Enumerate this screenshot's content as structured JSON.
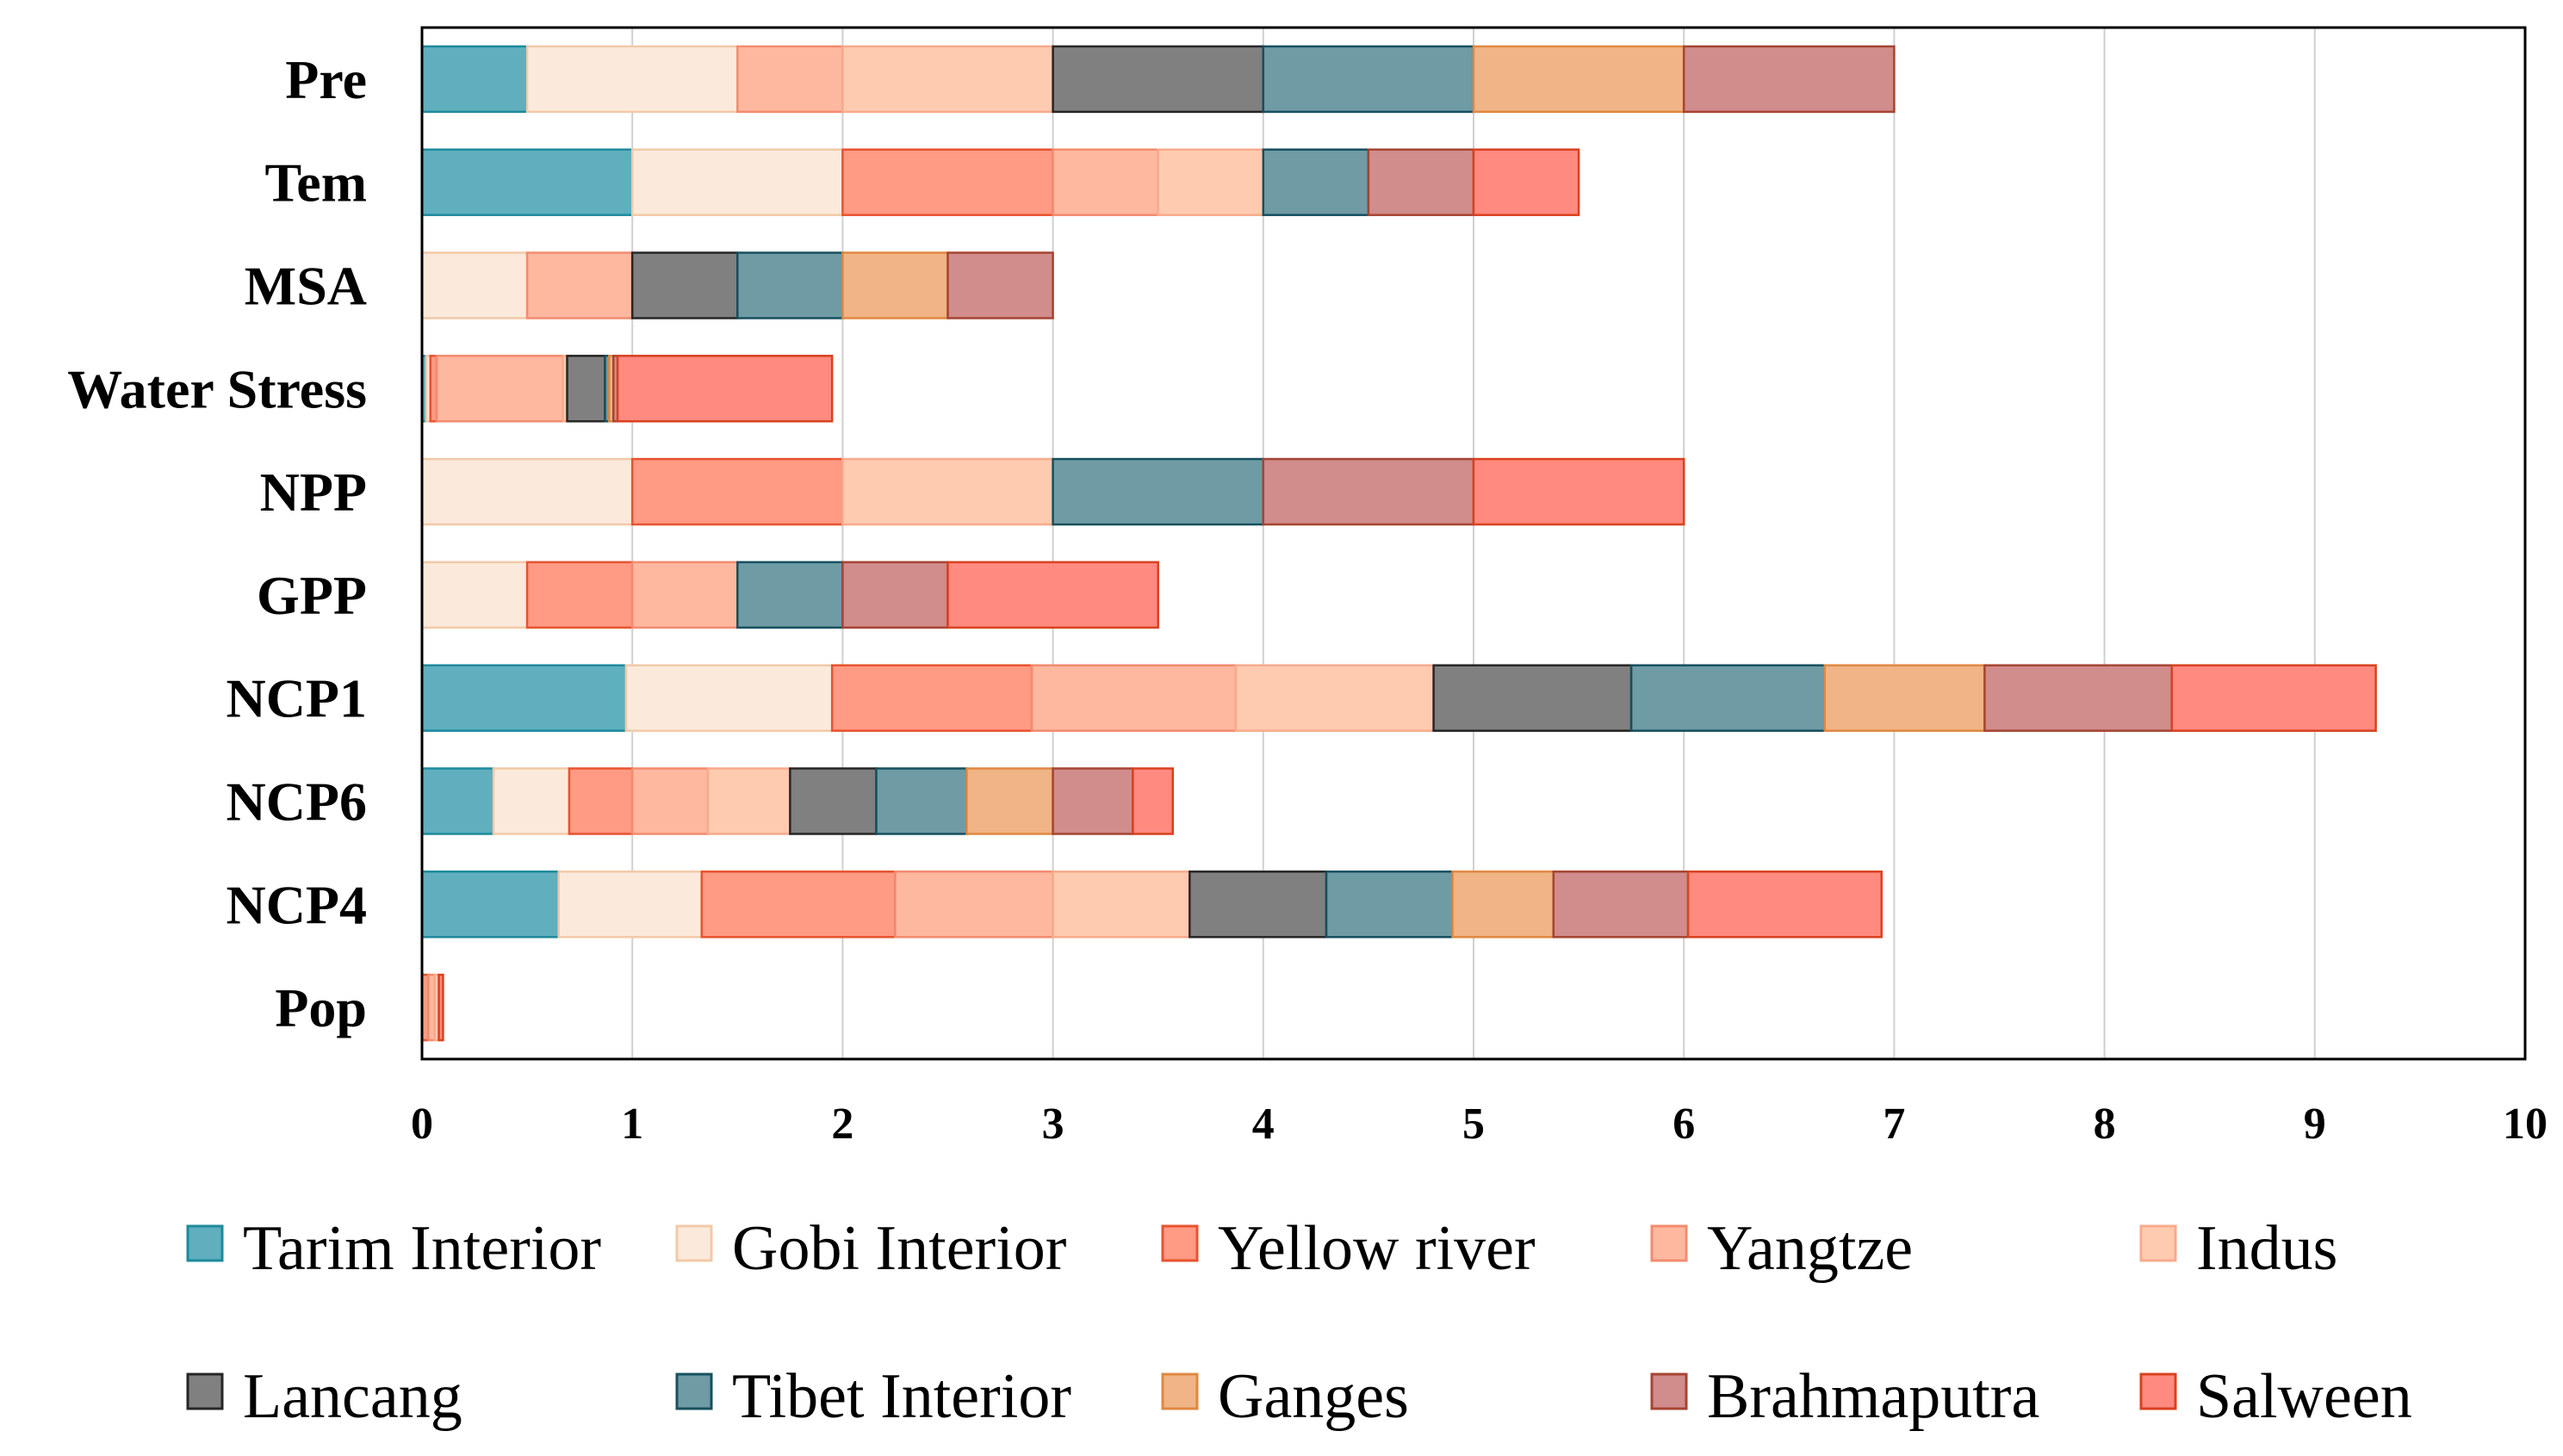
{
  "chart_data": {
    "type": "bar",
    "orientation": "horizontal",
    "stacked": true,
    "title": "",
    "xlabel": "",
    "ylabel": "",
    "xlim": [
      0,
      10
    ],
    "x_ticks": [
      "0",
      "1",
      "2",
      "3",
      "4",
      "5",
      "6",
      "7",
      "8",
      "9",
      "10"
    ],
    "grid": "vertical",
    "legend_position": "bottom",
    "categories": [
      "Pre",
      "Tem",
      "MSA",
      "Water Stress",
      "NPP",
      "GPP",
      "NCP1",
      "NCP6",
      "NCP4",
      "Pop"
    ],
    "series": [
      {
        "name": "Tarim Interior",
        "color": "#5FAFBF",
        "border": "#1E8A9C",
        "values": [
          0.5,
          1.0,
          0,
          0.02,
          0,
          0,
          0.97,
          0.34,
          0.65,
          0
        ]
      },
      {
        "name": "Gobi Interior",
        "color": "#FBEADB",
        "border": "#F2C9A8",
        "values": [
          1.0,
          1.0,
          0.5,
          0.02,
          1.0,
          0.5,
          0.98,
          0.36,
          0.68,
          0
        ]
      },
      {
        "name": "Yellow river",
        "color": "#FF9A84",
        "border": "#E8532F",
        "values": [
          0,
          1.0,
          0,
          0.03,
          1.0,
          0.5,
          0.95,
          0.3,
          0.92,
          0.03
        ]
      },
      {
        "name": "Yangtze",
        "color": "#FFB8A0",
        "border": "#F28B6E",
        "values": [
          0.5,
          0.5,
          0.5,
          0.6,
          0,
          0.5,
          0.97,
          0.36,
          0.75,
          0.03
        ]
      },
      {
        "name": "Indus",
        "color": "#FFCBB0",
        "border": "#F7AB8D",
        "values": [
          1.0,
          0.5,
          0,
          0.02,
          1.0,
          0,
          0.94,
          0.39,
          0.65,
          0.02
        ]
      },
      {
        "name": "Lancang",
        "color": "#808080",
        "border": "#262626",
        "values": [
          1.0,
          0,
          0.5,
          0.18,
          0,
          0,
          0.94,
          0.41,
          0.65,
          0
        ]
      },
      {
        "name": "Tibet Interior",
        "color": "#6F9BA5",
        "border": "#16505E",
        "values": [
          1.0,
          0.5,
          0.5,
          0.02,
          1.0,
          0.5,
          0.92,
          0.43,
          0.6,
          0
        ]
      },
      {
        "name": "Ganges",
        "color": "#F0B486",
        "border": "#E08840",
        "values": [
          1.0,
          0,
          0.5,
          0.02,
          0,
          0,
          0.76,
          0.41,
          0.48,
          0
        ]
      },
      {
        "name": "Brahmaputra",
        "color": "#D18C8C",
        "border": "#A64432",
        "values": [
          1.0,
          0.5,
          0.5,
          0.02,
          1.0,
          0.5,
          0.89,
          0.38,
          0.64,
          0
        ]
      },
      {
        "name": "Salween",
        "color": "#FF8A80",
        "border": "#D9411E",
        "values": [
          0,
          0.5,
          0,
          1.02,
          1.0,
          1.0,
          0.97,
          0.19,
          0.92,
          0.02
        ]
      }
    ]
  }
}
